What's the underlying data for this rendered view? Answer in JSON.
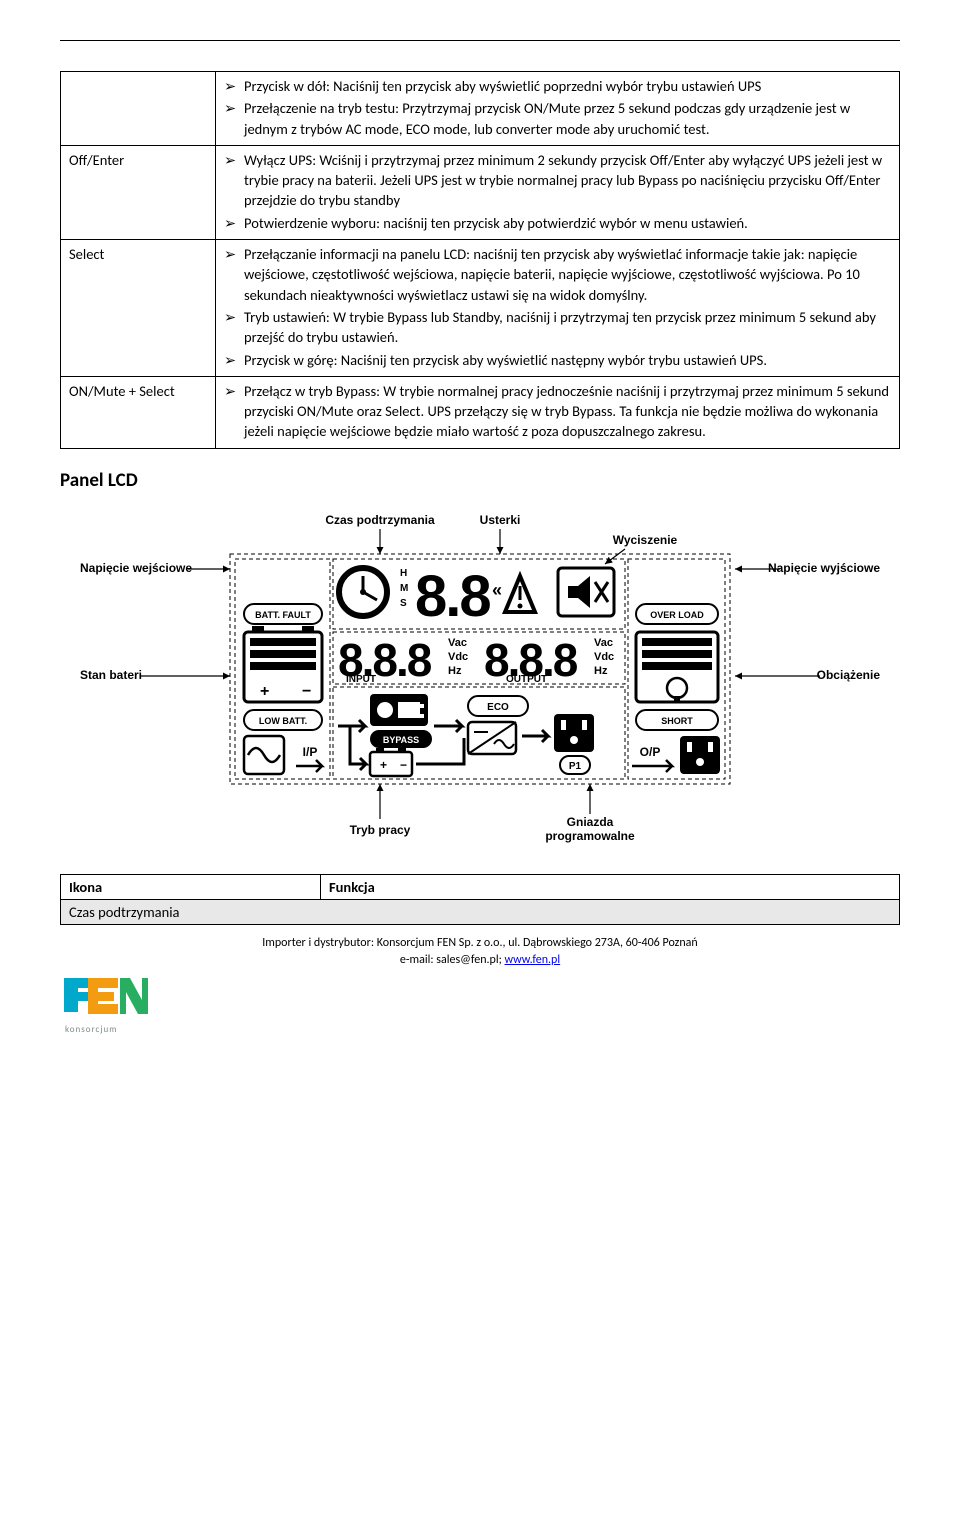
{
  "rows": [
    {
      "label": "",
      "items": [
        "Przycisk w dół:  Naciśnij ten przycisk aby wyświetlić  poprzedni wybór trybu ustawień UPS",
        "Przełączenie na tryb testu:  Przytrzymaj przycisk ON/Mute przez 5 sekund podczas gdy urządzenie jest w jednym z trybów AC mode, ECO mode, lub converter mode aby uruchomić test."
      ]
    },
    {
      "label": "Off/Enter",
      "items": [
        "Wyłącz UPS: Wciśnij i przytrzymaj przez minimum 2 sekundy przycisk Off/Enter aby wyłączyć UPS jeżeli jest w trybie pracy na baterii. Jeżeli UPS jest w trybie normalnej pracy lub Bypass po naciśnięciu przycisku Off/Enter przejdzie do trybu standby",
        "Potwierdzenie wyboru: naciśnij ten przycisk aby potwierdzić wybór w menu ustawień."
      ]
    },
    {
      "label": "Select",
      "items": [
        "Przełączanie informacji na panelu LCD: naciśnij ten przycisk aby wyświetlać informacje takie jak: napięcie wejściowe, częstotliwość wejściowa, napięcie baterii, napięcie wyjściowe, częstotliwość wyjściowa. Po 10 sekundach nieaktywności wyświetlacz ustawi się na widok domyślny.",
        "Tryb ustawień:  W trybie Bypass lub Standby, naciśnij i przytrzymaj ten przycisk przez minimum 5 sekund aby przejść do trybu ustawień.",
        " Przycisk w górę:  Naciśnij ten przycisk aby wyświetlić  następny wybór trybu ustawień UPS."
      ]
    },
    {
      "label": "ON/Mute + Select",
      "items": [
        "Przełącz w tryb Bypass: W trybie normalnej pracy jednocześnie naciśnij i przytrzymaj przez minimum 5 sekund przyciski ON/Mute oraz Select. UPS przełączy się w tryb Bypass. Ta funkcja nie będzie możliwa do wykonania jeżeli napięcie wejściowe będzie miało wartość z poza dopuszczalnego zakresu."
      ]
    }
  ],
  "section_heading": "Panel LCD",
  "lcd": {
    "labels": {
      "input_voltage": "Napięcie wejściowe",
      "backup_time": "Czas podtrzymania",
      "faults": "Usterki",
      "mute": "Wyciszenie",
      "output_voltage": "Napięcie wyjściowe",
      "battery_status": "Stan bateri",
      "load": "Obciążenie",
      "operation_mode": "Tryb pracy",
      "programmable_outlets": "Gniazda programowalne"
    },
    "display_text": {
      "batt_fault": "BATT. FAULT",
      "low_batt": "LOW BATT.",
      "over_load": "OVER LOAD",
      "short": "SHORT",
      "input": "INPUT",
      "output": "OUTPUT",
      "bypass": "BYPASS",
      "eco": "ECO",
      "ip": "I/P",
      "op": "O/P",
      "p1": "P1",
      "hms": [
        "H",
        "M",
        "S"
      ],
      "units": [
        "Vac",
        "Vdc",
        "Hz"
      ]
    }
  },
  "footer_table": {
    "header_left": "Ikona",
    "header_right": "Funkcja",
    "row2": "Czas podtrzymania"
  },
  "footer": {
    "line1": "Importer i dystrybutor: Konsorcjum FEN Sp. z o.o., ul. Dąbrowskiego 273A, 60-406 Poznań",
    "line2_prefix": "e-mail: sales@fen.pl; ",
    "link": "www.fen.pl"
  },
  "colors": {
    "text": "#000000",
    "link": "#0000ee",
    "logo_cyan": "#00a8cc",
    "logo_orange": "#f39c12",
    "logo_green": "#27ae60",
    "logo_gray": "#7f8c8d"
  }
}
